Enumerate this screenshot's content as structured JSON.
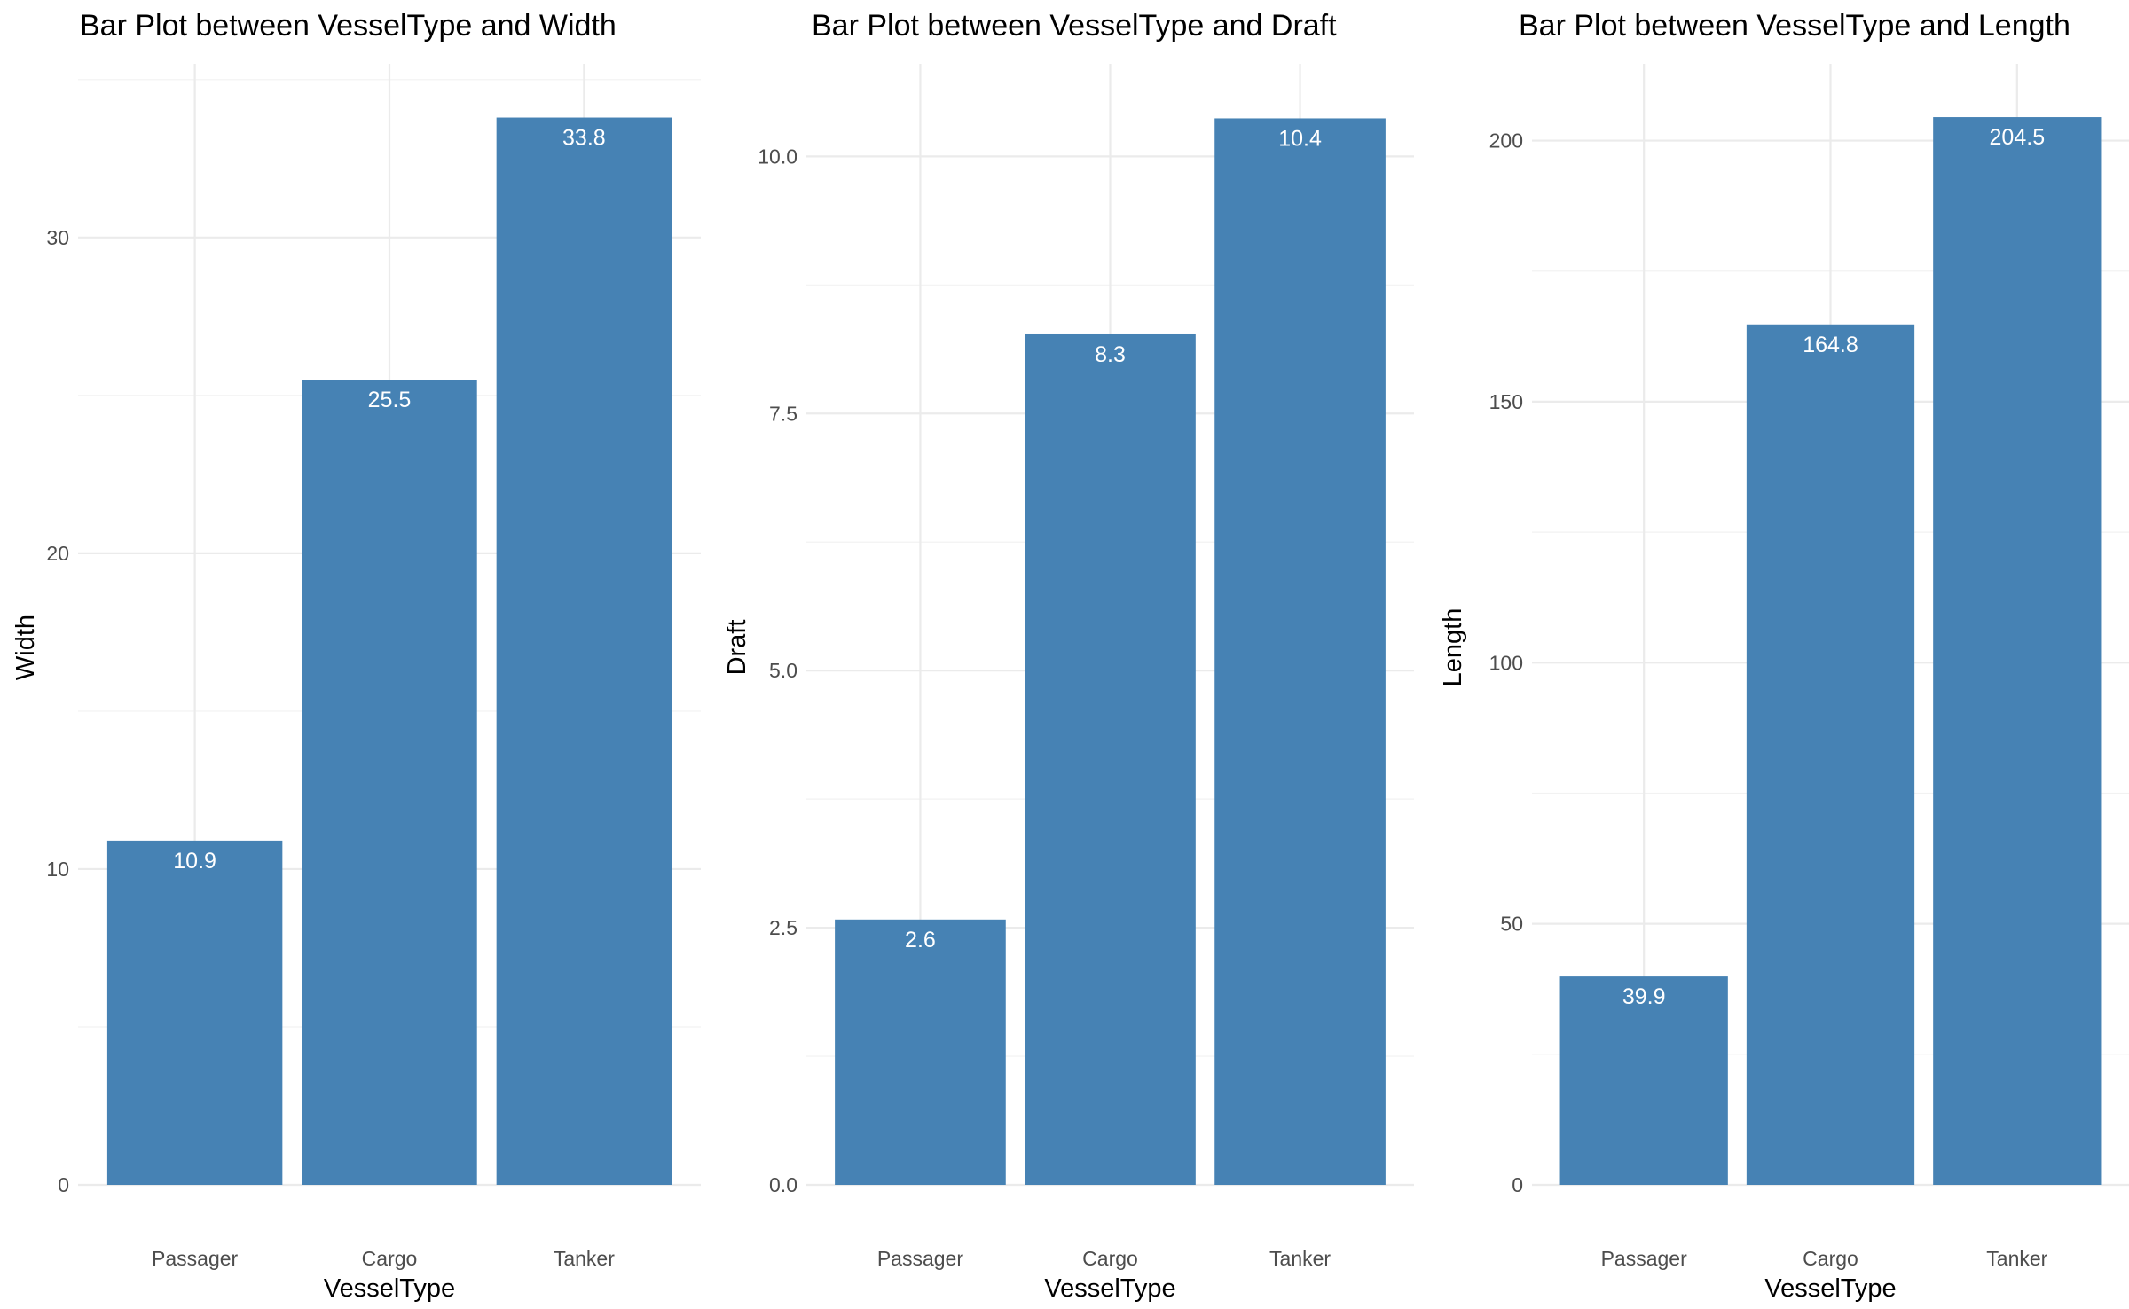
{
  "chart_data": [
    {
      "type": "bar",
      "title": "Bar Plot between VesselType and Width",
      "xlabel": "VesselType",
      "ylabel": "Width",
      "categories": [
        "Passager",
        "Cargo",
        "Tanker"
      ],
      "values": [
        10.9,
        25.5,
        33.8
      ],
      "data_labels": [
        "10.9",
        "25.5",
        "33.8"
      ],
      "ylim": [
        0,
        35.5
      ],
      "yticks": [
        0,
        10,
        20,
        30
      ],
      "ytick_labels": [
        "0",
        "10",
        "20",
        "30"
      ],
      "color": "#4682b4",
      "grid": true
    },
    {
      "type": "bar",
      "title": "Bar Plot between VesselType and Draft",
      "xlabel": "VesselType",
      "ylabel": "Draft",
      "categories": [
        "Passager",
        "Cargo",
        "Tanker"
      ],
      "values": [
        2.58,
        8.27,
        10.37
      ],
      "data_labels": [
        "2.6",
        "8.3",
        "10.4"
      ],
      "ylim": [
        0,
        10.9
      ],
      "yticks": [
        0,
        2.5,
        5,
        7.5,
        10
      ],
      "ytick_labels": [
        "0.0",
        "2.5",
        "5.0",
        "7.5",
        "10.0"
      ],
      "color": "#4682b4",
      "grid": true
    },
    {
      "type": "bar",
      "title": "Bar Plot between VesselType and Length",
      "xlabel": "VesselType",
      "ylabel": "Length",
      "categories": [
        "Passager",
        "Cargo",
        "Tanker"
      ],
      "values": [
        39.9,
        164.8,
        204.5
      ],
      "data_labels": [
        "39.9",
        "164.8",
        "204.5"
      ],
      "ylim": [
        0,
        214.7
      ],
      "yticks": [
        0,
        50,
        100,
        150,
        200
      ],
      "ytick_labels": [
        "0",
        "50",
        "100",
        "150",
        "200"
      ],
      "color": "#4682b4",
      "grid": true
    }
  ]
}
